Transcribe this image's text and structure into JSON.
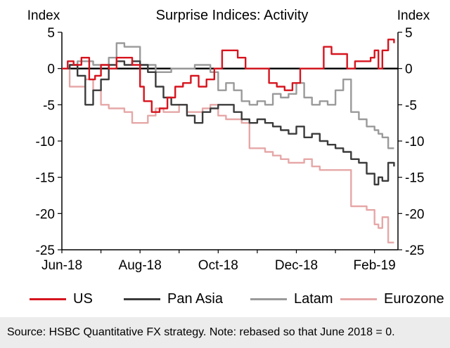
{
  "chart_data": {
    "type": "line",
    "title": "Surprise Indices: Activity",
    "ylabel_left": "Index",
    "ylabel_right": "Index",
    "ylim": [
      -25,
      5
    ],
    "yticks": [
      5,
      0,
      -5,
      -10,
      -15,
      -20,
      -25
    ],
    "xlim": [
      0,
      8.6
    ],
    "xtick_labels": [
      {
        "label": "Jun-18",
        "x": 0
      },
      {
        "label": "Aug-18",
        "x": 2
      },
      {
        "label": "Oct-18",
        "x": 4
      },
      {
        "label": "Dec-18",
        "x": 6
      },
      {
        "label": "Feb-19",
        "x": 8
      }
    ],
    "zero_line": true,
    "series": [
      {
        "name": "US",
        "color": "#d7141e",
        "x": [
          0,
          0.15,
          0.3,
          0.5,
          0.7,
          0.85,
          1.0,
          1.2,
          1.4,
          1.6,
          1.8,
          2.0,
          2.1,
          2.3,
          2.5,
          2.7,
          2.9,
          3.1,
          3.3,
          3.5,
          3.7,
          3.9,
          4.1,
          4.3,
          4.5,
          4.7,
          4.9,
          5.1,
          5.3,
          5.5,
          5.7,
          5.9,
          6.1,
          6.3,
          6.5,
          6.7,
          6.9,
          7.1,
          7.3,
          7.5,
          7.7,
          7.9,
          8.0,
          8.1,
          8.2,
          8.35,
          8.5
        ],
        "values": [
          0,
          1.0,
          0.5,
          1.5,
          -1.5,
          -1.0,
          0.5,
          0,
          1.5,
          1.5,
          0.5,
          -2.5,
          -4.5,
          -6,
          -5.5,
          -4.0,
          -2.5,
          -2,
          -1,
          -2.5,
          -1.5,
          0,
          2.5,
          2.5,
          1.5,
          0,
          0,
          0,
          -2,
          -2.5,
          -3.0,
          -2,
          0,
          0,
          0,
          3,
          2,
          2,
          0,
          1,
          1,
          1.5,
          2.5,
          0.0,
          2.5,
          4.0,
          3.5
        ]
      },
      {
        "name": "Pan Asia",
        "color": "#3b3b3b",
        "x": [
          0,
          0.2,
          0.4,
          0.6,
          0.8,
          1.0,
          1.2,
          1.4,
          1.6,
          1.8,
          2.0,
          2.2,
          2.4,
          2.6,
          2.8,
          3.0,
          3.2,
          3.4,
          3.6,
          3.8,
          4.0,
          4.2,
          4.4,
          4.6,
          4.8,
          5.0,
          5.2,
          5.4,
          5.6,
          5.8,
          6.0,
          6.2,
          6.4,
          6.6,
          6.8,
          7.0,
          7.2,
          7.4,
          7.6,
          7.8,
          8.0,
          8.1,
          8.2,
          8.35,
          8.5
        ],
        "values": [
          0,
          0.5,
          -1.0,
          -5.0,
          -3.0,
          -1.5,
          0.5,
          1.0,
          0.5,
          1.0,
          0.5,
          -0.5,
          -2.5,
          -4.0,
          -5.0,
          -5.0,
          -6.5,
          -7.5,
          -6.0,
          -5.5,
          -5.0,
          -5.0,
          -6.0,
          -7.0,
          -7.5,
          -7.0,
          -7.5,
          -8.0,
          -8.5,
          -9.0,
          -8.0,
          -9.5,
          -9.0,
          -10.0,
          -10.5,
          -11.0,
          -11.5,
          -12.5,
          -13.0,
          -14.5,
          -16.0,
          -15.0,
          -15.5,
          -13.0,
          -13.5
        ]
      },
      {
        "name": "Latam",
        "color": "#9a9a9a",
        "x": [
          0,
          0.2,
          0.4,
          0.6,
          0.8,
          1.0,
          1.2,
          1.4,
          1.6,
          1.8,
          2.0,
          2.2,
          2.4,
          2.6,
          2.8,
          3.0,
          3.2,
          3.4,
          3.6,
          3.8,
          4.0,
          4.2,
          4.4,
          4.6,
          4.8,
          5.0,
          5.2,
          5.4,
          5.6,
          5.8,
          6.0,
          6.2,
          6.4,
          6.6,
          6.8,
          7.0,
          7.2,
          7.4,
          7.6,
          7.8,
          8.0,
          8.1,
          8.2,
          8.35,
          8.5
        ],
        "values": [
          0,
          0.5,
          1.0,
          1.0,
          0.5,
          0.5,
          1.5,
          3.5,
          3.0,
          3.0,
          0.5,
          0.5,
          -0.5,
          -0.5,
          0,
          0,
          0,
          0.5,
          0.5,
          -0.5,
          -3.0,
          -2.0,
          -3.0,
          -4.5,
          -5.0,
          -4.5,
          -5.0,
          -3.5,
          -4.0,
          -3.5,
          -2.0,
          -4.0,
          -5.0,
          -4.5,
          -5.0,
          -3.0,
          -1.5,
          -6.0,
          -7.0,
          -8.0,
          -8.5,
          -9.0,
          -9.5,
          -11.0,
          -11.0
        ]
      },
      {
        "name": "Eurozone",
        "color": "#e6a7a7",
        "x": [
          0,
          0.2,
          0.4,
          0.6,
          0.8,
          1.0,
          1.2,
          1.4,
          1.6,
          1.8,
          2.0,
          2.2,
          2.4,
          2.6,
          2.8,
          3.0,
          3.2,
          3.4,
          3.6,
          3.8,
          4.0,
          4.2,
          4.4,
          4.6,
          4.8,
          5.0,
          5.2,
          5.4,
          5.6,
          5.8,
          6.0,
          6.2,
          6.4,
          6.6,
          6.8,
          7.0,
          7.2,
          7.4,
          7.6,
          7.8,
          8.0,
          8.1,
          8.2,
          8.35,
          8.5
        ],
        "values": [
          0,
          -2.5,
          -2.5,
          -1.5,
          -3.0,
          -5.0,
          -5.5,
          -5.5,
          -6.0,
          -7.5,
          -7.5,
          -6.5,
          -5.5,
          -6.0,
          -6.0,
          -5.0,
          -6.0,
          -6.0,
          -5.5,
          -5.0,
          -6.5,
          -7.0,
          -7.0,
          -7.5,
          -11.0,
          -11.0,
          -11.5,
          -12.0,
          -12.5,
          -13.0,
          -13.0,
          -12.5,
          -13.5,
          -14.0,
          -14.0,
          -14.0,
          -14.0,
          -19.0,
          -19.0,
          -19.5,
          -21.5,
          -22.0,
          -20.5,
          -24.0,
          -24.0
        ]
      }
    ],
    "legend": [
      "US",
      "Pan Asia",
      "Latam",
      "Eurozone"
    ]
  },
  "source_note": "Source: HSBC Quantitative FX strategy. Note: rebased so that June 2018 = 0."
}
